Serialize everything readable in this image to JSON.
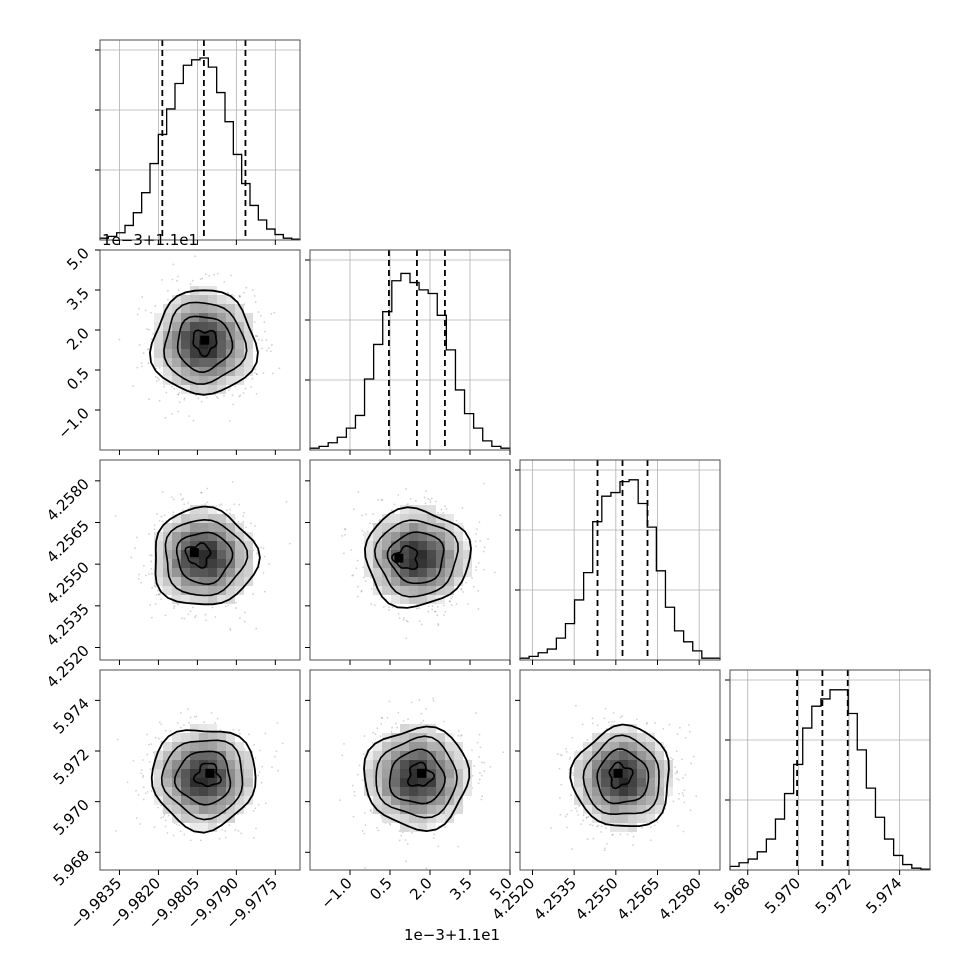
{
  "chart_data": {
    "type": "corner",
    "parameters": 4,
    "grid": true,
    "scatter_color": "#000000",
    "histogram_color": "#000000",
    "quantile_line_style": "dashed",
    "x_offset_label_col1": "1e−3+1.1e1",
    "y_offset_label_row1": "1e−3+1.1e1",
    "ranges": [
      [
        -9.98425,
        -9.97655
      ],
      [
        -2.5,
        5.0
      ],
      [
        4.25155,
        4.25875
      ],
      [
        5.9673,
        5.9752
      ]
    ],
    "quantiles": [
      [
        -9.98185,
        -9.98025,
        -9.97865
      ],
      [
        0.46,
        1.51,
        2.56
      ],
      [
        4.25434,
        4.25524,
        4.25614
      ],
      [
        5.96995,
        5.97095,
        5.97195
      ]
    ],
    "x_ticks": [
      [
        "−9.9835",
        "−9.9820",
        "−9.9805",
        "−9.9790",
        "−9.9775"
      ],
      [
        "−1.0",
        "0.5",
        "2.0",
        "3.5",
        "5.0"
      ],
      [
        "4.2520",
        "4.2535",
        "4.2550",
        "4.2565",
        "4.2580"
      ],
      [
        "5.968",
        "5.970",
        "5.972",
        "5.974"
      ]
    ],
    "x_tick_values": [
      [
        -9.9835,
        -9.982,
        -9.9805,
        -9.979,
        -9.9775
      ],
      [
        -1.0,
        0.5,
        2.0,
        3.5,
        5.0
      ],
      [
        4.252,
        4.2535,
        4.255,
        4.2565,
        4.258
      ],
      [
        5.968,
        5.97,
        5.972,
        5.974
      ]
    ],
    "y_ticks": [
      [],
      [
        "5.0",
        "3.5",
        "2.0",
        "0.5",
        "−1.0"
      ],
      [
        "4.2580",
        "4.2565",
        "4.2550",
        "4.2535",
        "4.2520"
      ],
      [
        "5.974",
        "5.972",
        "5.970",
        "5.968"
      ]
    ],
    "y_tick_values": [
      [],
      [
        5.0,
        3.5,
        2.0,
        0.5,
        -1.0
      ],
      [
        4.258,
        4.2565,
        4.255,
        4.2535,
        4.252
      ],
      [
        5.974,
        5.972,
        5.97,
        5.968
      ]
    ],
    "histograms": [
      [
        1,
        2,
        4,
        8,
        15,
        26,
        42,
        58,
        72,
        86,
        96,
        99,
        100,
        95,
        81,
        65,
        47,
        31,
        19,
        11,
        6,
        3,
        1,
        0.5
      ],
      [
        1,
        2,
        4,
        7,
        12,
        19,
        39,
        58,
        76,
        93,
        97,
        92,
        88,
        86,
        74,
        55,
        33,
        20,
        12,
        5,
        2,
        1
      ],
      [
        1,
        2,
        4,
        6,
        12,
        20,
        33,
        48,
        76,
        90,
        92,
        98,
        99,
        86,
        73,
        49,
        29,
        16,
        10,
        5,
        1,
        1
      ],
      [
        2,
        4,
        6,
        10,
        17,
        28,
        42,
        58,
        78,
        90,
        94,
        99,
        99,
        86,
        66,
        45,
        29,
        17,
        8,
        3,
        1,
        0.5
      ]
    ],
    "hist_ymax": [
      100,
      100,
      100,
      100
    ],
    "hist_y_tick_fractions": [
      0.35,
      0.65,
      0.95
    ],
    "hist_vertical_grid": [
      [
        -9.9835,
        -9.982,
        -9.9805,
        -9.979,
        -9.9775
      ],
      [
        -1.0,
        0.5,
        2.0,
        3.5,
        5.0
      ],
      [
        4.252,
        4.2535,
        4.255,
        4.2565,
        4.258
      ],
      [
        5.968,
        5.97,
        5.972,
        5.974
      ]
    ],
    "pairs": [
      {
        "row": 1,
        "col": 0,
        "cx": -9.98025,
        "cy": 1.51,
        "sx": 0.001,
        "sy": 0.98,
        "mode": [
          -9.9802,
          1.6
        ]
      },
      {
        "row": 2,
        "col": 0,
        "cx": -9.98025,
        "cy": 4.25524,
        "sx": 0.001,
        "sy": 0.00088,
        "mode": [
          -9.9806,
          4.2554
        ]
      },
      {
        "row": 2,
        "col": 1,
        "cx": 1.51,
        "cy": 4.25524,
        "sx": 0.98,
        "sy": 0.00088,
        "mode": [
          0.85,
          4.2552
        ]
      },
      {
        "row": 3,
        "col": 0,
        "cx": -9.98025,
        "cy": 5.97095,
        "sx": 0.001,
        "sy": 0.001,
        "mode": [
          -9.98,
          5.9711
        ]
      },
      {
        "row": 3,
        "col": 1,
        "cx": 1.51,
        "cy": 5.97095,
        "sx": 0.98,
        "sy": 0.001,
        "mode": [
          1.7,
          5.9711
        ]
      },
      {
        "row": 3,
        "col": 2,
        "cx": 4.25524,
        "cy": 5.97095,
        "sx": 0.00088,
        "sy": 0.001,
        "mode": [
          4.2551,
          5.9711
        ]
      }
    ]
  }
}
